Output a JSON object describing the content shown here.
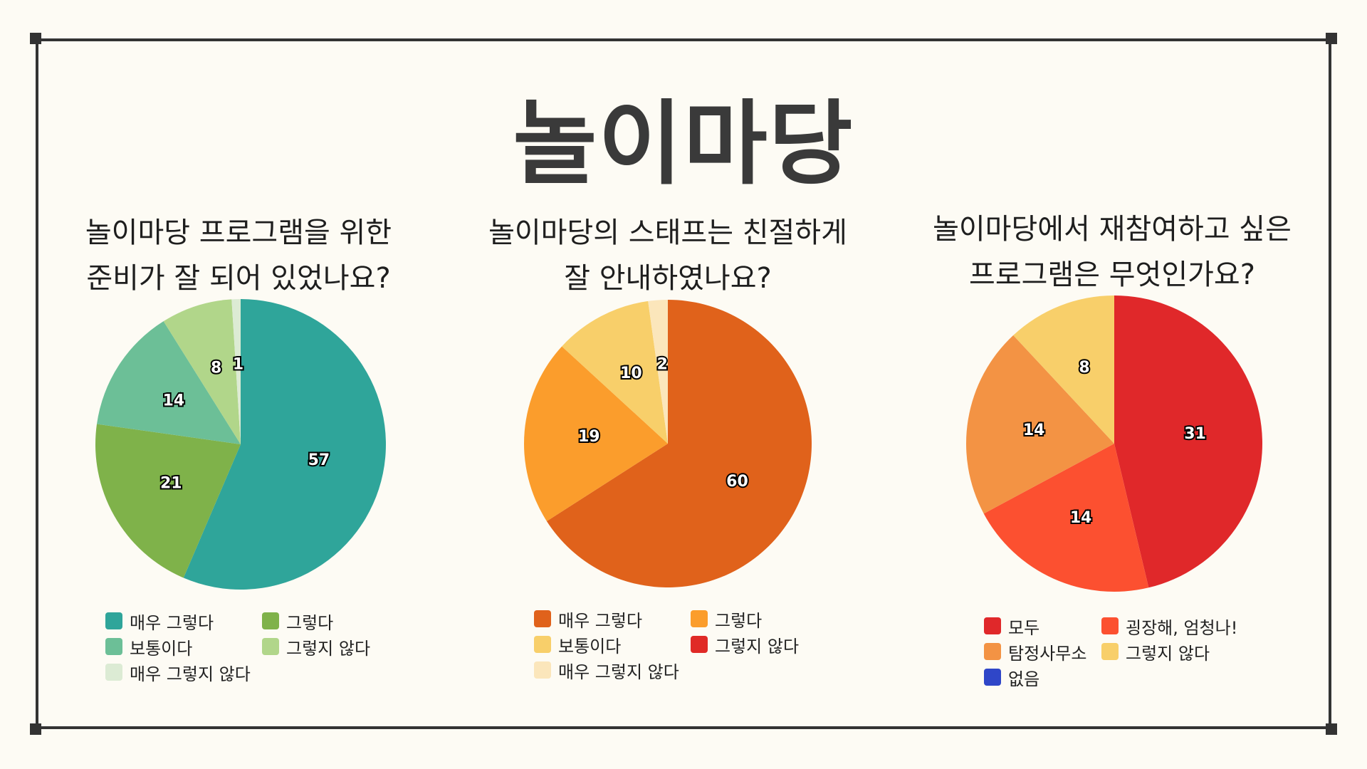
{
  "page_title": "놀이마당",
  "chart_data": [
    {
      "type": "pie",
      "title_lines": [
        "놀이마당 프로그램을 위한",
        "준비가 잘 되어 있었나요?"
      ],
      "slices": [
        {
          "label": "매우 그렇다",
          "value": 57,
          "color": "#2fa59a"
        },
        {
          "label": "그렇다",
          "value": 21,
          "color": "#7fb24a"
        },
        {
          "label": "보통이다",
          "value": 14,
          "color": "#6cbf97"
        },
        {
          "label": "그렇지 않다",
          "value": 8,
          "color": "#b1d68a"
        },
        {
          "label": "매우 그렇지 않다",
          "value": 1,
          "color": "#dcebd4"
        }
      ],
      "legend": [
        {
          "label": "매우 그렇다",
          "color": "#2fa59a"
        },
        {
          "label": "그렇다",
          "color": "#7fb24a"
        },
        {
          "label": "보통이다",
          "color": "#6cbf97"
        },
        {
          "label": "그렇지 않다",
          "color": "#b1d68a"
        },
        {
          "label": "매우 그렇지 않다",
          "color": "#dcebd4"
        }
      ]
    },
    {
      "type": "pie",
      "title_lines": [
        "놀이마당의 스태프는 친절하게",
        "잘 안내하였나요?"
      ],
      "slices": [
        {
          "label": "매우 그렇다",
          "value": 60,
          "color": "#e0621b"
        },
        {
          "label": "그렇다",
          "value": 19,
          "color": "#fb9d2c"
        },
        {
          "label": "보통이다",
          "value": 10,
          "color": "#f8cf6a"
        },
        {
          "label": "매우 그렇지 않다",
          "value": 2,
          "color": "#fbe6bb"
        }
      ],
      "legend": [
        {
          "label": "매우 그렇다",
          "color": "#e0621b"
        },
        {
          "label": "그렇다",
          "color": "#fb9d2c"
        },
        {
          "label": "보통이다",
          "color": "#f8cf6a"
        },
        {
          "label": "그렇지 않다",
          "color": "#e02a26"
        },
        {
          "label": "매우 그렇지 않다",
          "color": "#fbe6bb"
        }
      ]
    },
    {
      "type": "pie",
      "title_lines": [
        "놀이마당에서 재참여하고 싶은",
        "프로그램은 무엇인가요?"
      ],
      "slices": [
        {
          "label": "모두",
          "value": 31,
          "color": "#e0282a"
        },
        {
          "label": "굉장해, 엄청나!",
          "value": 14,
          "color": "#fc5030"
        },
        {
          "label": "탐정사무소",
          "value": 14,
          "color": "#f39344"
        },
        {
          "label": "그렇지 않다",
          "value": 8,
          "color": "#f8cf6a"
        }
      ],
      "legend": [
        {
          "label": "모두",
          "color": "#e0282a"
        },
        {
          "label": "굉장해, 엄청나!",
          "color": "#fc5030"
        },
        {
          "label": "탐정사무소",
          "color": "#f39344"
        },
        {
          "label": "그렇지 않다",
          "color": "#f8cf6a"
        },
        {
          "label": "없음",
          "color": "#2f46c8"
        }
      ]
    }
  ]
}
